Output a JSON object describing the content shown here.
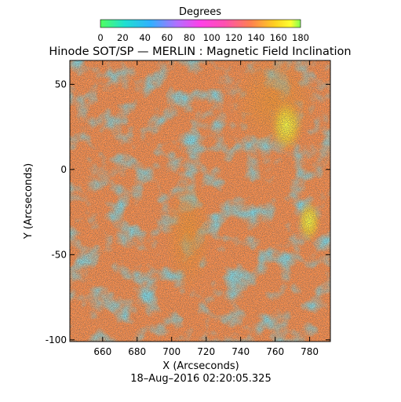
{
  "colorbar": {
    "label": "Degrees",
    "ticks": [
      "0",
      "20",
      "40",
      "60",
      "80",
      "100",
      "120",
      "140",
      "160",
      "180"
    ],
    "range": [
      0,
      180
    ],
    "colors": [
      "#50ff50",
      "#20e0e0",
      "#30b0ff",
      "#d060ff",
      "#ff40e0",
      "#ff60a0",
      "#ff9040",
      "#ffd020",
      "#ffff30",
      "#80ff40"
    ]
  },
  "title": "Hinode SOT/SP — MERLIN : Magnetic Field Inclination",
  "x_axis": {
    "label": "X (Arcseconds)",
    "ticks": [
      "660",
      "680",
      "700",
      "720",
      "740",
      "760",
      "780"
    ],
    "range": [
      641,
      792
    ]
  },
  "y_axis": {
    "label": "Y (Arcseconds)",
    "ticks": [
      "-100",
      "-50",
      "0",
      "50"
    ],
    "range": [
      -101,
      64
    ]
  },
  "timestamp": "18–Aug–2016 02:20:05.325",
  "image": {
    "description_colors": {
      "background": "#ff50d0",
      "cyan_regions": "#30c8f0",
      "orange_regions": "#ff9a30",
      "yellow_regions": "#ffe040"
    }
  }
}
